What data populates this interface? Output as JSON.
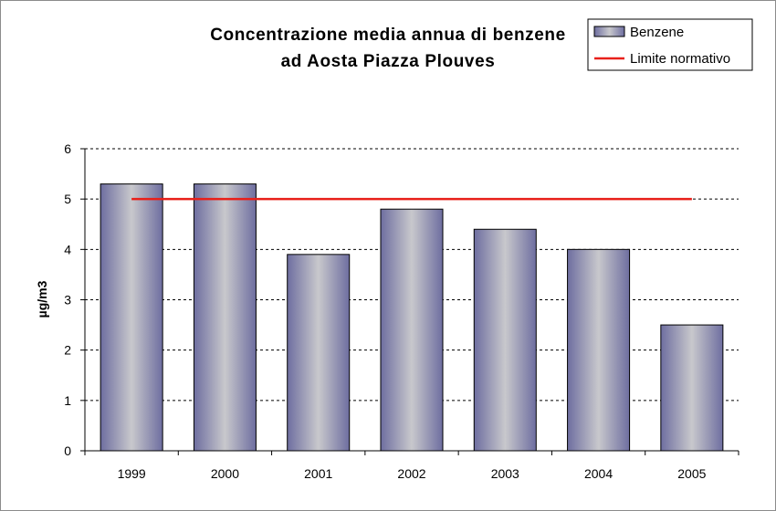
{
  "chart_data": {
    "type": "bar",
    "title": [
      "Concentrazione media annua di benzene",
      "ad Aosta Piazza Plouves"
    ],
    "xlabel": "",
    "ylabel": "µg/m3",
    "categories": [
      "1999",
      "2000",
      "2001",
      "2002",
      "2003",
      "2004",
      "2005"
    ],
    "series": [
      {
        "name": "Benzene",
        "type": "bar",
        "values": [
          5.3,
          5.3,
          3.9,
          4.8,
          4.4,
          4.0,
          2.5
        ]
      },
      {
        "name": "Limite normativo",
        "type": "line",
        "value": 5,
        "color": "#e8201a"
      }
    ],
    "ylim": [
      0,
      6
    ],
    "yticks": [
      0,
      1,
      2,
      3,
      4,
      5,
      6
    ],
    "grid": {
      "y": "dashed",
      "x": false
    },
    "legend": "top-right",
    "colors": {
      "bar_edge": "#5a5a8a",
      "bar_dark": "#6e6ea0",
      "bar_light": "#c8c8cc",
      "line": "#e8201a"
    }
  }
}
